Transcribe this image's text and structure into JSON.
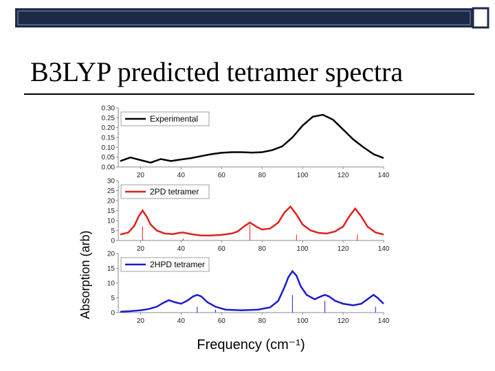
{
  "title": "B3LYP predicted tetramer spectra",
  "x_label": "Frequency (cm⁻¹)",
  "y_label": "Absorption (arb)",
  "chart_data": [
    {
      "type": "line",
      "x": [
        10,
        15,
        20,
        25,
        30,
        35,
        40,
        45,
        50,
        55,
        60,
        65,
        70,
        75,
        80,
        85,
        90,
        95,
        100,
        105,
        110,
        115,
        120,
        125,
        130,
        135,
        140
      ],
      "series": [
        {
          "name": "Experimental",
          "color": "#000000",
          "values": [
            0.03,
            0.048,
            0.035,
            0.022,
            0.04,
            0.03,
            0.038,
            0.045,
            0.055,
            0.065,
            0.072,
            0.075,
            0.075,
            0.073,
            0.075,
            0.085,
            0.105,
            0.15,
            0.21,
            0.255,
            0.265,
            0.24,
            0.19,
            0.14,
            0.1,
            0.065,
            0.045
          ]
        }
      ],
      "xlim": [
        9,
        140
      ],
      "xticks": [
        20,
        40,
        60,
        80,
        100,
        120,
        140
      ],
      "ylim": [
        0,
        0.3
      ],
      "yticks": [
        {
          "value": 0,
          "label": "0.00"
        },
        {
          "value": 0.05,
          "label": "0.05"
        },
        {
          "value": 0.1,
          "label": "0.10"
        },
        {
          "value": 0.15,
          "label": "0.15"
        },
        {
          "value": 0.2,
          "label": "0.20"
        },
        {
          "value": 0.25,
          "label": "0.25"
        },
        {
          "value": 0.3,
          "label": "0.30"
        }
      ]
    },
    {
      "type": "line",
      "x": [
        10,
        14,
        17,
        19,
        21,
        23,
        25,
        28,
        32,
        36,
        39,
        41,
        43,
        46,
        50,
        55,
        60,
        65,
        68,
        71,
        74,
        77,
        80,
        84,
        88,
        91,
        94,
        97,
        100,
        104,
        108,
        112,
        116,
        120,
        123,
        126,
        129,
        132,
        136,
        140
      ],
      "series": [
        {
          "name": "2PD tetramer",
          "color": "#e0201b",
          "values": [
            3,
            4,
            7.5,
            12,
            15,
            12,
            8,
            5,
            3.5,
            3.2,
            3.8,
            4,
            3.6,
            3,
            2.5,
            2.5,
            2.8,
            3.5,
            4.5,
            7,
            9,
            7,
            5.5,
            6,
            9,
            14,
            17,
            13,
            8,
            5,
            3.8,
            3.5,
            4.5,
            7,
            12,
            16,
            12,
            7,
            4,
            3
          ]
        }
      ],
      "sticks": {
        "color": "#e0201b",
        "x": [
          21,
          41,
          74,
          97,
          127
        ],
        "values": [
          7,
          1,
          8,
          3,
          3
        ]
      },
      "xlim": [
        9,
        140
      ],
      "xticks": [
        20,
        40,
        60,
        80,
        100,
        120,
        140
      ],
      "ylim": [
        0,
        30
      ],
      "yticks": [
        0,
        5,
        10,
        15,
        20,
        25,
        30
      ]
    },
    {
      "type": "line",
      "x": [
        10,
        15,
        20,
        24,
        28,
        31,
        34,
        37,
        40,
        43,
        46,
        48,
        50,
        53,
        57,
        62,
        70,
        78,
        84,
        88,
        91,
        93,
        95,
        97,
        99,
        102,
        106,
        109,
        111,
        113,
        116,
        120,
        125,
        129,
        132,
        135,
        137,
        140
      ],
      "series": [
        {
          "name": "2HPD tetramer",
          "color": "#1a1ad0",
          "values": [
            0.3,
            0.5,
            0.8,
            1.2,
            2,
            3.2,
            4.2,
            3.5,
            3,
            4,
            5.5,
            6,
            5.5,
            3.5,
            2,
            1,
            0.8,
            1,
            1.8,
            4,
            8.5,
            12,
            14,
            12.5,
            9,
            6,
            4.5,
            5.5,
            6,
            5.5,
            4,
            3,
            2.5,
            3,
            4.5,
            6,
            5,
            3
          ]
        }
      ],
      "sticks": {
        "color": "#1a1ad0",
        "x": [
          48,
          57,
          95,
          111,
          136
        ],
        "values": [
          2,
          1,
          6,
          4,
          2
        ]
      },
      "xlim": [
        9,
        140
      ],
      "xticks": [
        20,
        40,
        60,
        80,
        100,
        120,
        140
      ],
      "ylim": [
        0,
        20
      ],
      "yticks": [
        0,
        5,
        10,
        15,
        20
      ]
    }
  ]
}
